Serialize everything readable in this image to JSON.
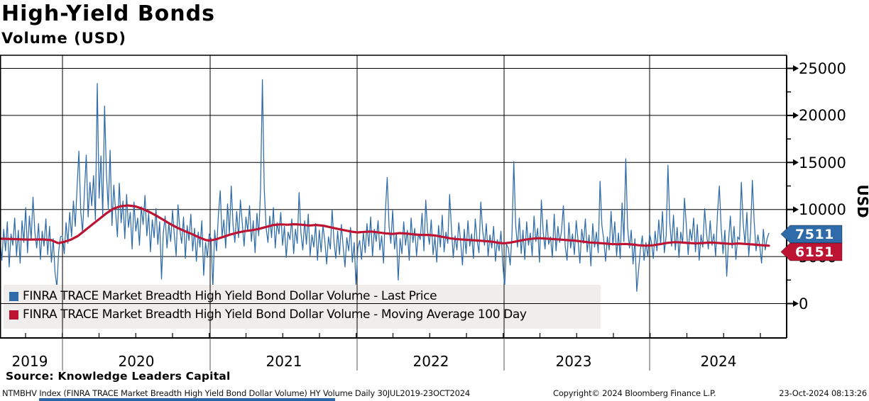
{
  "header": {
    "title": "High-Yield Bonds",
    "subtitle": "Volume (USD)"
  },
  "legend": {
    "items": [
      {
        "label": "FINRA TRACE Market Breadth High Yield Bond Dollar Volume - Last Price",
        "color": "#2e6ba8"
      },
      {
        "label": "FINRA TRACE Market Breadth High Yield Bond Dollar Volume - Moving Average 100 Day",
        "color": "#bc1432"
      }
    ],
    "background": "#efeeec"
  },
  "axis": {
    "usd_label": "USD",
    "y_ticks": [
      "25000",
      "20000",
      "15000",
      "10000",
      "5000",
      "0"
    ],
    "x_labels": [
      "2019",
      "2020",
      "2021",
      "2022",
      "2023",
      "2024"
    ]
  },
  "price_tags": {
    "last": {
      "value": "7511",
      "color": "#2e6ba8"
    },
    "ma": {
      "value": "6151",
      "color": "#bc1432"
    }
  },
  "footer": {
    "source": "Source: Knowledge Leaders Capital",
    "ticker_line": "NTMBHV Index (FINRA TRACE Market Breadth High Yield Bond Dollar Volume) HY Volume  Daily 30JUL2019-23OCT2024",
    "copyright": "Copyright© 2024 Bloomberg Finance L.P.",
    "timestamp": "23-Oct-2024 08:13:26"
  },
  "colors": {
    "blue": "#2e6ba8",
    "red": "#bc1432",
    "grid": "#000000",
    "legend_bg": "#efeeec",
    "bottom_bar": "#2e67a9"
  },
  "chart_data": {
    "type": "line",
    "title": "High-Yield Bonds Volume (USD)",
    "x_range": [
      "2019-07-30",
      "2024-10-23"
    ],
    "ylim": [
      0,
      25000
    ],
    "y_tick_values": [
      0,
      5000,
      10000,
      15000,
      20000,
      25000
    ],
    "y_minor_step": 2500,
    "grid": true,
    "legend_position": "bottom-left-inside",
    "last_price": 7511,
    "ma_100d_last": 6151,
    "note": "values estimated from pixels; daily series uniformly sampled left-to-right over the date range",
    "series": [
      {
        "name": "FINRA TRACE Market Breadth High Yield Bond Dollar Volume - Last Price",
        "color": "#2e6ba8",
        "values": [
          6800,
          4600,
          7900,
          5600,
          8700,
          3900,
          7400,
          6200,
          9100,
          5100,
          7800,
          4300,
          8800,
          6500,
          10200,
          5400,
          9300,
          6800,
          11300,
          7600,
          5900,
          8500,
          4700,
          7700,
          6100,
          9000,
          5200,
          8200,
          4400,
          6900,
          3300,
          1800,
          5600,
          7100,
          7200,
          5300,
          8600,
          6400,
          9700,
          7100,
          10900,
          8200,
          12400,
          16200,
          9800,
          7600,
          11800,
          15800,
          9200,
          12900,
          10400,
          13600,
          8900,
          23400,
          11200,
          15700,
          9400,
          21000,
          13800,
          10100,
          16300,
          8300,
          12600,
          9800,
          7100,
          12800,
          8600,
          10900,
          6900,
          11600,
          8100,
          9700,
          5800,
          10800,
          7700,
          9100,
          6200,
          10300,
          8400,
          11500,
          7200,
          9600,
          5500,
          8900,
          7000,
          10100,
          6300,
          8700,
          2600,
          7500,
          9300,
          5900,
          8500,
          6600,
          9900,
          7300,
          5100,
          10500,
          7900,
          6400,
          9200,
          4800,
          8300,
          6700,
          9500,
          5600,
          8000,
          4500,
          7600,
          6000,
          8800,
          3000,
          6500,
          4900,
          7400,
          6900,
          1600,
          7800,
          5600,
          9400,
          12000,
          7100,
          8900,
          5900,
          10600,
          7400,
          12500,
          8300,
          6500,
          9800,
          7000,
          11000,
          8600,
          6100,
          9200,
          7700,
          10400,
          6600,
          8800,
          5400,
          9600,
          7200,
          12100,
          23800,
          12200,
          8100,
          6500,
          9300,
          7000,
          10200,
          5900,
          8600,
          7400,
          9700,
          6200,
          8200,
          4900,
          7600,
          6800,
          9000,
          5300,
          7900,
          6400,
          11800,
          7500,
          5700,
          8800,
          6300,
          9500,
          5100,
          7300,
          6000,
          8500,
          4600,
          7800,
          5500,
          8300,
          6700,
          4200,
          7100,
          5800,
          10000,
          6600,
          4800,
          7700,
          5200,
          8400,
          6100,
          3900,
          7000,
          5600,
          8100,
          4400,
          6500,
          2000,
          5900,
          6700,
          4700,
          7600,
          5400,
          8500,
          6100,
          9200,
          5000,
          7900,
          6600,
          8800,
          5700,
          7200,
          4300,
          9700,
          13400,
          8200,
          6400,
          9900,
          5800,
          7500,
          2500,
          6900,
          5300,
          8700,
          6200,
          7800,
          4600,
          9100,
          6500,
          8000,
          5100,
          7400,
          6800,
          9600,
          5600,
          11000,
          7700,
          6300,
          8900,
          5200,
          7100,
          4400,
          8300,
          6000,
          9400,
          5500,
          7600,
          6400,
          11600,
          8100,
          4900,
          7200,
          5700,
          8600,
          6600,
          4100,
          7900,
          5300,
          8800,
          6100,
          7400,
          4800,
          9000,
          6700,
          5400,
          10800,
          7800,
          6200,
          8500,
          5000,
          7300,
          5900,
          8200,
          4500,
          6800,
          5600,
          7700,
          4200,
          1800,
          6300,
          5900,
          4100,
          7200,
          15100,
          8400,
          6000,
          9100,
          5300,
          7800,
          4700,
          8700,
          6200,
          7500,
          5100,
          9300,
          6600,
          8000,
          4400,
          11000,
          7600,
          5800,
          8900,
          6300,
          7100,
          4900,
          9500,
          5600,
          8200,
          6500,
          7700,
          10400,
          6100,
          4600,
          8600,
          5900,
          7400,
          5200,
          8800,
          6700,
          4300,
          7900,
          6400,
          9000,
          5500,
          7300,
          4000,
          8500,
          6000,
          7600,
          5400,
          13000,
          8300,
          6800,
          4500,
          7100,
          5700,
          9800,
          6200,
          8700,
          5100,
          7500,
          4800,
          10700,
          6600,
          15400,
          8100,
          5900,
          7800,
          4200,
          6900,
          1300,
          3600,
          5800,
          7200,
          4600,
          6500,
          5000,
          7400,
          6500,
          4800,
          7700,
          5600,
          8900,
          6300,
          9800,
          5400,
          7200,
          14700,
          8600,
          6100,
          9400,
          5700,
          8100,
          4900,
          7600,
          6400,
          11200,
          8300,
          5200,
          7900,
          6700,
          9100,
          5500,
          8400,
          4600,
          7300,
          6000,
          10100,
          7500,
          5800,
          8800,
          6200,
          7400,
          5000,
          9600,
          12500,
          8000,
          5300,
          7800,
          2900,
          6600,
          9300,
          5900,
          8200,
          4700,
          7100,
          6800,
          12900,
          8500,
          6300,
          9700,
          5100,
          7600,
          13100,
          8700,
          5600,
          7300,
          6100,
          4300,
          7900,
          5700,
          6900,
          7511
        ]
      },
      {
        "name": "FINRA TRACE Market Breadth High Yield Bond Dollar Volume - Moving Average 100 Day",
        "color": "#bc1432",
        "x_note": "x is timeline position 0-1083 (0 = 30JUL2019, 1083 = 23OCT2024)",
        "points": [
          [
            0,
            6900
          ],
          [
            20,
            6850
          ],
          [
            40,
            6800
          ],
          [
            60,
            6820
          ],
          [
            72,
            6750
          ],
          [
            82,
            6420
          ],
          [
            90,
            6550
          ],
          [
            100,
            6800
          ],
          [
            110,
            7200
          ],
          [
            120,
            7800
          ],
          [
            130,
            8400
          ],
          [
            140,
            9000
          ],
          [
            150,
            9600
          ],
          [
            160,
            10100
          ],
          [
            170,
            10350
          ],
          [
            180,
            10430
          ],
          [
            190,
            10350
          ],
          [
            200,
            10100
          ],
          [
            210,
            9750
          ],
          [
            220,
            9350
          ],
          [
            230,
            8900
          ],
          [
            240,
            8450
          ],
          [
            250,
            8050
          ],
          [
            260,
            7700
          ],
          [
            270,
            7400
          ],
          [
            280,
            7050
          ],
          [
            290,
            6750
          ],
          [
            296,
            6700
          ],
          [
            305,
            6850
          ],
          [
            315,
            7100
          ],
          [
            325,
            7350
          ],
          [
            335,
            7550
          ],
          [
            345,
            7700
          ],
          [
            355,
            7800
          ],
          [
            365,
            7950
          ],
          [
            375,
            8150
          ],
          [
            385,
            8350
          ],
          [
            395,
            8420
          ],
          [
            405,
            8380
          ],
          [
            415,
            8430
          ],
          [
            425,
            8380
          ],
          [
            435,
            8300
          ],
          [
            445,
            8350
          ],
          [
            455,
            8280
          ],
          [
            465,
            8120
          ],
          [
            475,
            7950
          ],
          [
            485,
            7800
          ],
          [
            495,
            7650
          ],
          [
            503,
            7560
          ],
          [
            513,
            7620
          ],
          [
            523,
            7660
          ],
          [
            533,
            7560
          ],
          [
            543,
            7460
          ],
          [
            553,
            7400
          ],
          [
            563,
            7490
          ],
          [
            573,
            7440
          ],
          [
            583,
            7350
          ],
          [
            593,
            7300
          ],
          [
            603,
            7300
          ],
          [
            613,
            7240
          ],
          [
            623,
            7090
          ],
          [
            633,
            6950
          ],
          [
            643,
            6850
          ],
          [
            653,
            6800
          ],
          [
            663,
            6750
          ],
          [
            673,
            6700
          ],
          [
            683,
            6640
          ],
          [
            693,
            6580
          ],
          [
            701,
            6470
          ],
          [
            710,
            6400
          ],
          [
            720,
            6500
          ],
          [
            730,
            6650
          ],
          [
            740,
            6800
          ],
          [
            750,
            6900
          ],
          [
            760,
            6950
          ],
          [
            770,
            6900
          ],
          [
            780,
            6850
          ],
          [
            790,
            6800
          ],
          [
            800,
            6740
          ],
          [
            810,
            6690
          ],
          [
            820,
            6600
          ],
          [
            830,
            6500
          ],
          [
            840,
            6450
          ],
          [
            850,
            6400
          ],
          [
            860,
            6340
          ],
          [
            870,
            6300
          ],
          [
            880,
            6340
          ],
          [
            890,
            6290
          ],
          [
            900,
            6200
          ],
          [
            910,
            6150
          ],
          [
            920,
            6200
          ],
          [
            930,
            6320
          ],
          [
            940,
            6450
          ],
          [
            950,
            6530
          ],
          [
            960,
            6500
          ],
          [
            970,
            6440
          ],
          [
            980,
            6400
          ],
          [
            990,
            6440
          ],
          [
            1000,
            6490
          ],
          [
            1010,
            6450
          ],
          [
            1020,
            6390
          ],
          [
            1030,
            6340
          ],
          [
            1040,
            6390
          ],
          [
            1050,
            6340
          ],
          [
            1060,
            6290
          ],
          [
            1070,
            6220
          ],
          [
            1083,
            6151
          ]
        ]
      }
    ]
  }
}
